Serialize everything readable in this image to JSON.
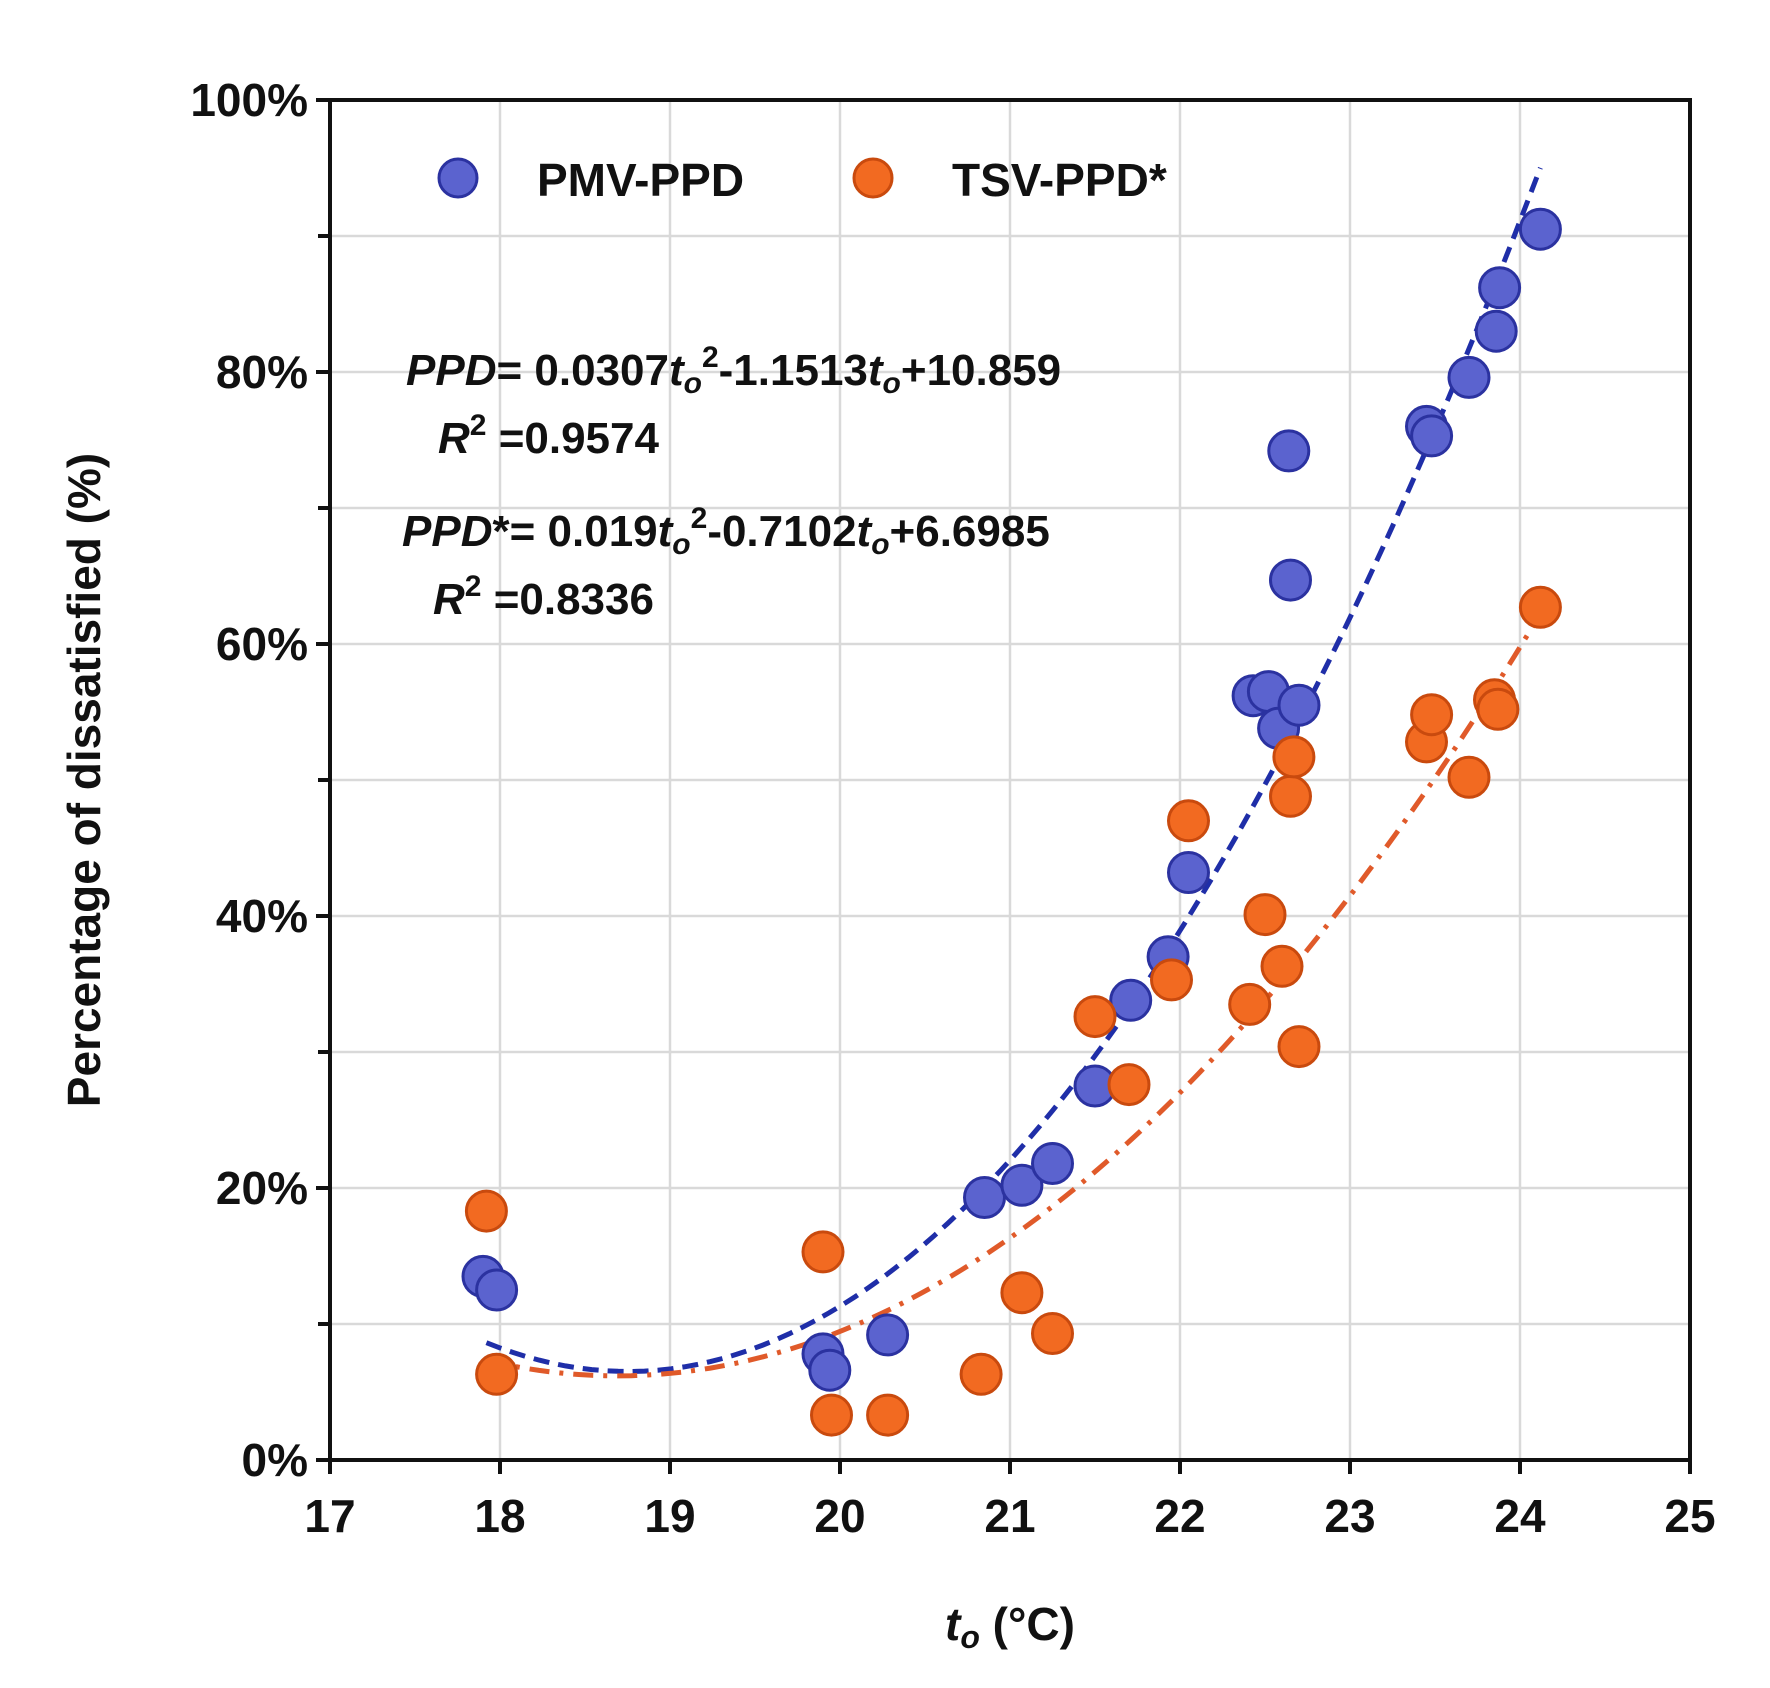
{
  "chart_data": {
    "type": "scatter",
    "xlabel": {
      "var": "t",
      "sub": "o",
      "unit": " (°C)"
    },
    "ylabel": "Percentage of dissatisfied (%)",
    "xlim": [
      17,
      25
    ],
    "ylim": [
      0,
      100
    ],
    "x_ticks": [
      17,
      18,
      19,
      20,
      21,
      22,
      23,
      24,
      25
    ],
    "y_ticks": [
      "0%",
      "20%",
      "40%",
      "60%",
      "80%",
      "100%"
    ],
    "y_tick_values": [
      0,
      20,
      40,
      60,
      80,
      100
    ],
    "y_minor_ticks": [
      10,
      30,
      50,
      70,
      90
    ],
    "grid": true,
    "legend_position": "top-left",
    "series": [
      {
        "name": "PMV-PPD",
        "color": "#5b63cf",
        "edge": "#2b32a0",
        "fit_color": "#1f2ea8",
        "fit_style": "dashed",
        "fit": {
          "a": 3.07,
          "b": -115.13,
          "c": 1085.9,
          "x_range": [
            17.92,
            24.12
          ]
        },
        "equation": {
          "lhs": "PPD",
          "star": "",
          "eq": "= 0.0307",
          "t": "t",
          "sub": "o",
          "pow": "2",
          "mid": "-1.1513",
          "tail": "+10.859"
        },
        "r2": {
          "r": "R",
          "pow": "2",
          "value": " =0.9574"
        },
        "points": [
          [
            17.9,
            13.5
          ],
          [
            17.98,
            12.5
          ],
          [
            19.9,
            7.8
          ],
          [
            19.94,
            6.6
          ],
          [
            20.28,
            9.2
          ],
          [
            20.85,
            19.3
          ],
          [
            21.07,
            20.2
          ],
          [
            21.25,
            21.8
          ],
          [
            21.5,
            27.5
          ],
          [
            21.71,
            33.8
          ],
          [
            21.93,
            37.0
          ],
          [
            22.05,
            43.2
          ],
          [
            22.43,
            56.2
          ],
          [
            22.52,
            56.5
          ],
          [
            22.58,
            53.8
          ],
          [
            22.64,
            74.2
          ],
          [
            22.65,
            64.7
          ],
          [
            22.7,
            55.5
          ],
          [
            23.45,
            76.0
          ],
          [
            23.48,
            75.3
          ],
          [
            23.7,
            79.6
          ],
          [
            23.86,
            83.0
          ],
          [
            23.88,
            86.2
          ],
          [
            24.12,
            90.5
          ]
        ]
      },
      {
        "name": "TSV-PPD*",
        "color": "#f26a21",
        "edge": "#c94a0e",
        "fit_color": "#e05a2a",
        "fit_style": "dashdot",
        "fit": {
          "a": 1.9,
          "b": -71.02,
          "c": 669.85,
          "x_range": [
            17.92,
            24.12
          ]
        },
        "equation": {
          "lhs": "PPD",
          "star": "*",
          "eq": "= 0.019",
          "t": "t",
          "sub": "o",
          "pow": "2",
          "mid": "-0.7102",
          "tail": "+6.6985"
        },
        "r2": {
          "r": "R",
          "pow": "2",
          "value": " =0.8336"
        },
        "points": [
          [
            17.92,
            18.3
          ],
          [
            17.98,
            6.3
          ],
          [
            19.9,
            15.3
          ],
          [
            19.95,
            3.3
          ],
          [
            20.28,
            3.3
          ],
          [
            20.83,
            6.3
          ],
          [
            21.07,
            12.3
          ],
          [
            21.25,
            9.3
          ],
          [
            21.5,
            32.6
          ],
          [
            21.7,
            27.6
          ],
          [
            21.95,
            35.3
          ],
          [
            22.05,
            47.0
          ],
          [
            22.41,
            33.5
          ],
          [
            22.5,
            40.1
          ],
          [
            22.6,
            36.3
          ],
          [
            22.65,
            48.8
          ],
          [
            22.67,
            51.7
          ],
          [
            22.7,
            30.4
          ],
          [
            23.45,
            52.8
          ],
          [
            23.48,
            54.8
          ],
          [
            23.7,
            50.2
          ],
          [
            23.85,
            55.9
          ],
          [
            23.87,
            55.2
          ],
          [
            24.12,
            62.7
          ]
        ]
      }
    ]
  }
}
